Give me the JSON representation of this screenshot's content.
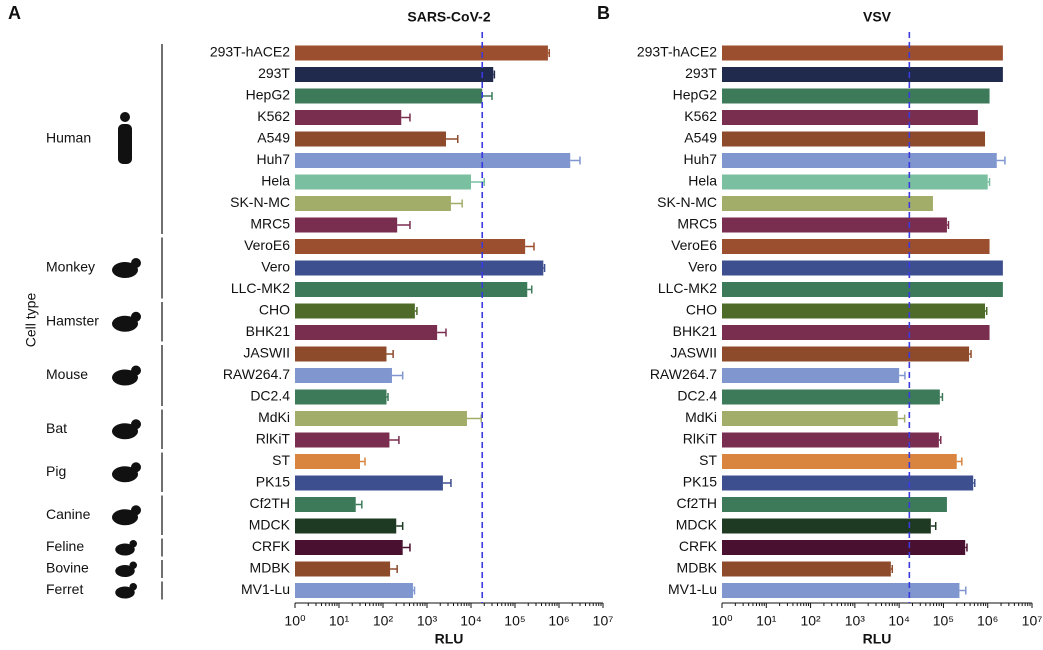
{
  "chart_data": [
    {
      "type": "bar",
      "orientation": "horizontal",
      "panel": "A",
      "title": "SARS-CoV-2",
      "x_label": "RLU",
      "y_label": "Cell type",
      "log_scale": true,
      "categories": [
        "293T-hACE2",
        "293T",
        "HepG2",
        "K562",
        "A549",
        "Huh7",
        "Hela",
        "SK-N-MC",
        "MRC5",
        "VeroE6",
        "Vero",
        "LLC-MK2",
        "CHO",
        "BHK21",
        "JASWII",
        "RAW264.7",
        "DC2.4",
        "MdKi",
        "RlKiT",
        "ST",
        "PK15",
        "Cf2TH",
        "MDCK",
        "CRFK",
        "MDBK",
        "MV1-Lu"
      ],
      "colors": [
        "#9c4f2e",
        "#1f2a4d",
        "#3d7a5a",
        "#7a2e4f",
        "#8e4b2c",
        "#7f96cf",
        "#79bfa0",
        "#a3ad6a",
        "#7a2e4f",
        "#9c4f2e",
        "#3d4f8f",
        "#3d7a5a",
        "#4e6b2a",
        "#7a2e4f",
        "#8e4b2c",
        "#7f96cf",
        "#3d7a5a",
        "#a3ad6a",
        "#7a2e4f",
        "#d9853f",
        "#3d4f8f",
        "#3d7a5a",
        "#1f3a22",
        "#4a1030",
        "#8e4b2c",
        "#7f96cf"
      ],
      "values": [
        560000,
        32000,
        18000,
        260,
        2700,
        1800000,
        10000,
        3500,
        210,
        170000,
        440000,
        190000,
        530,
        1700,
        120,
        160,
        120,
        8100,
        140,
        30,
        2300,
        24,
        200,
        280,
        145,
        480
      ],
      "errors": [
        40000,
        2000,
        12000,
        150,
        2300,
        1200000,
        10000,
        2800,
        200,
        100000,
        30000,
        50000,
        60,
        1000,
        50,
        120,
        10,
        9000,
        90,
        9,
        1200,
        9,
        80,
        130,
        65,
        40
      ],
      "reference_line": 18000,
      "xlim": [
        1,
        10000000
      ],
      "xticks": [
        {
          "value": 1,
          "label": "10⁰"
        },
        {
          "value": 10,
          "label": "10¹"
        },
        {
          "value": 100,
          "label": "10²"
        },
        {
          "value": 1000,
          "label": "10³"
        },
        {
          "value": 10000,
          "label": "10⁴"
        },
        {
          "value": 100000,
          "label": "10⁵"
        },
        {
          "value": 1000000,
          "label": "10⁶"
        },
        {
          "value": 10000000,
          "label": "10⁷"
        }
      ],
      "groups": [
        {
          "label": "Human",
          "rows": [
            0,
            8
          ]
        },
        {
          "label": "Monkey",
          "rows": [
            9,
            11
          ]
        },
        {
          "label": "Hamster",
          "rows": [
            12,
            13
          ]
        },
        {
          "label": "Mouse",
          "rows": [
            14,
            16
          ]
        },
        {
          "label": "Bat",
          "rows": [
            17,
            18
          ]
        },
        {
          "label": "Pig",
          "rows": [
            19,
            20
          ]
        },
        {
          "label": "Canine",
          "rows": [
            21,
            22
          ]
        },
        {
          "label": "Feline",
          "rows": [
            23,
            23
          ]
        },
        {
          "label": "Bovine",
          "rows": [
            24,
            24
          ]
        },
        {
          "label": "Ferret",
          "rows": [
            25,
            25
          ]
        }
      ]
    },
    {
      "type": "bar",
      "orientation": "horizontal",
      "panel": "B",
      "title": "VSV",
      "x_label": "RLU",
      "log_scale": true,
      "categories": [
        "293T-hACE2",
        "293T",
        "HepG2",
        "K562",
        "A549",
        "Huh7",
        "Hela",
        "SK-N-MC",
        "MRC5",
        "VeroE6",
        "Vero",
        "LLC-MK2",
        "CHO",
        "BHK21",
        "JASWII",
        "RAW264.7",
        "DC2.4",
        "MdKi",
        "RlKiT",
        "ST",
        "PK15",
        "Cf2TH",
        "MDCK",
        "CRFK",
        "MDBK",
        "MV1-Lu"
      ],
      "colors": [
        "#9c4f2e",
        "#1f2a4d",
        "#3d7a5a",
        "#7a2e4f",
        "#8e4b2c",
        "#7f96cf",
        "#79bfa0",
        "#a3ad6a",
        "#7a2e4f",
        "#9c4f2e",
        "#3d4f8f",
        "#3d7a5a",
        "#4e6b2a",
        "#7a2e4f",
        "#8e4b2c",
        "#7f96cf",
        "#3d7a5a",
        "#a3ad6a",
        "#7a2e4f",
        "#d9853f",
        "#3d4f8f",
        "#3d7a5a",
        "#1f3a22",
        "#4a1030",
        "#8e4b2c",
        "#7f96cf"
      ],
      "values": [
        2200000,
        2200000,
        1100000,
        600000,
        870000,
        1600000,
        1000000,
        58000,
        120000,
        1100000,
        2200000,
        2200000,
        870000,
        1100000,
        380000,
        10000,
        83000,
        9300,
        79000,
        200000,
        470000,
        120000,
        52000,
        310000,
        6500,
        230000
      ],
      "errors": [
        null,
        null,
        null,
        null,
        null,
        850000,
        100000,
        null,
        10000,
        null,
        null,
        null,
        80000,
        null,
        40000,
        3500,
        12000,
        4000,
        8000,
        60000,
        40000,
        null,
        15000,
        30000,
        500,
        90000
      ],
      "reference_line": 17000,
      "xlim": [
        1,
        10000000
      ],
      "xticks": [
        {
          "value": 1,
          "label": "10⁰"
        },
        {
          "value": 10,
          "label": "10¹"
        },
        {
          "value": 100,
          "label": "10²"
        },
        {
          "value": 1000,
          "label": "10³"
        },
        {
          "value": 10000,
          "label": "10⁴"
        },
        {
          "value": 100000,
          "label": "10⁵"
        },
        {
          "value": 1000000,
          "label": "10⁶"
        },
        {
          "value": 10000000,
          "label": "10⁷"
        }
      ]
    }
  ]
}
